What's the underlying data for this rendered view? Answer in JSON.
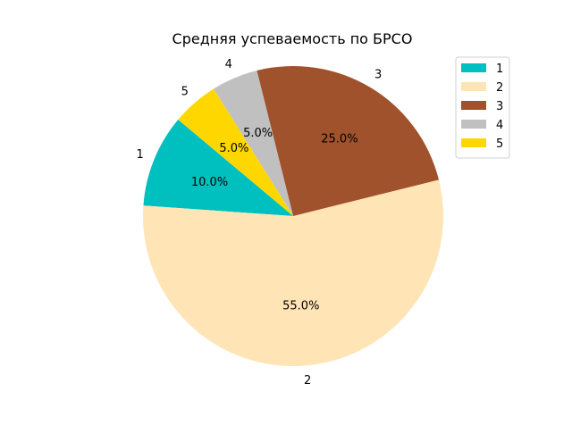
{
  "chart_data": {
    "type": "pie",
    "title": "Средняя успеваемость по БРСО",
    "categories": [
      "1",
      "2",
      "3",
      "4",
      "5"
    ],
    "values": [
      10.0,
      55.0,
      25.0,
      5.0,
      5.0
    ],
    "pct_labels": [
      "10.0%",
      "55.0%",
      "25.0%",
      "5.0%",
      "5.0%"
    ],
    "colors": [
      "#00bfbf",
      "#ffe4b5",
      "#a0522d",
      "#c0c0c0",
      "#ffd700"
    ],
    "legend": {
      "entries": [
        "1",
        "2",
        "3",
        "4",
        "5"
      ],
      "placement": "top-right"
    },
    "start_angle_deg": 140,
    "direction": "counterclockwise"
  }
}
